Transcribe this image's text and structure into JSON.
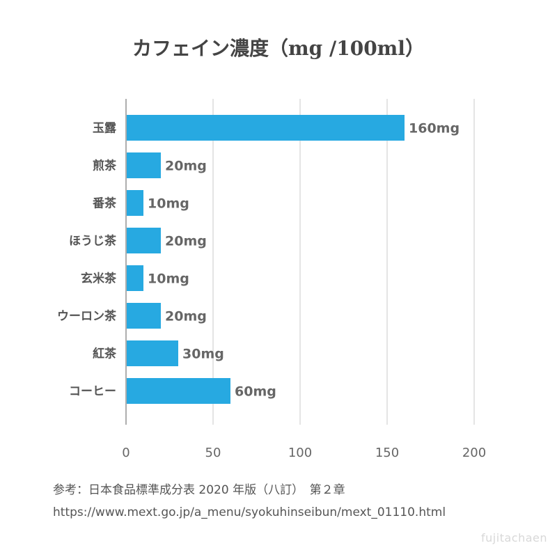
{
  "chart_data": {
    "type": "bar",
    "orientation": "horizontal",
    "title": "カフェイン濃度（mg /100ml）",
    "categories": [
      "玉露",
      "煎茶",
      "番茶",
      "ほうじ茶",
      "玄米茶",
      "ウーロン茶",
      "紅茶",
      "コーヒー"
    ],
    "values": [
      160,
      20,
      10,
      20,
      10,
      20,
      30,
      60
    ],
    "data_labels": [
      "160mg",
      "20mg",
      "10mg",
      "20mg",
      "10mg",
      "20mg",
      "30mg",
      "60mg"
    ],
    "x_ticks": [
      "0",
      "50",
      "100",
      "150",
      "200"
    ],
    "xlim": [
      0,
      200
    ],
    "grid": true,
    "bar_color": "#27a9e1"
  },
  "footer": {
    "source_line": "参考：日本食品標準成分表 2020 年版（八訂）　第２章",
    "url_line": "https://www.mext.go.jp/a_menu/syokuhinseibun/mext_01110.html"
  },
  "watermark": "fujitachaen"
}
